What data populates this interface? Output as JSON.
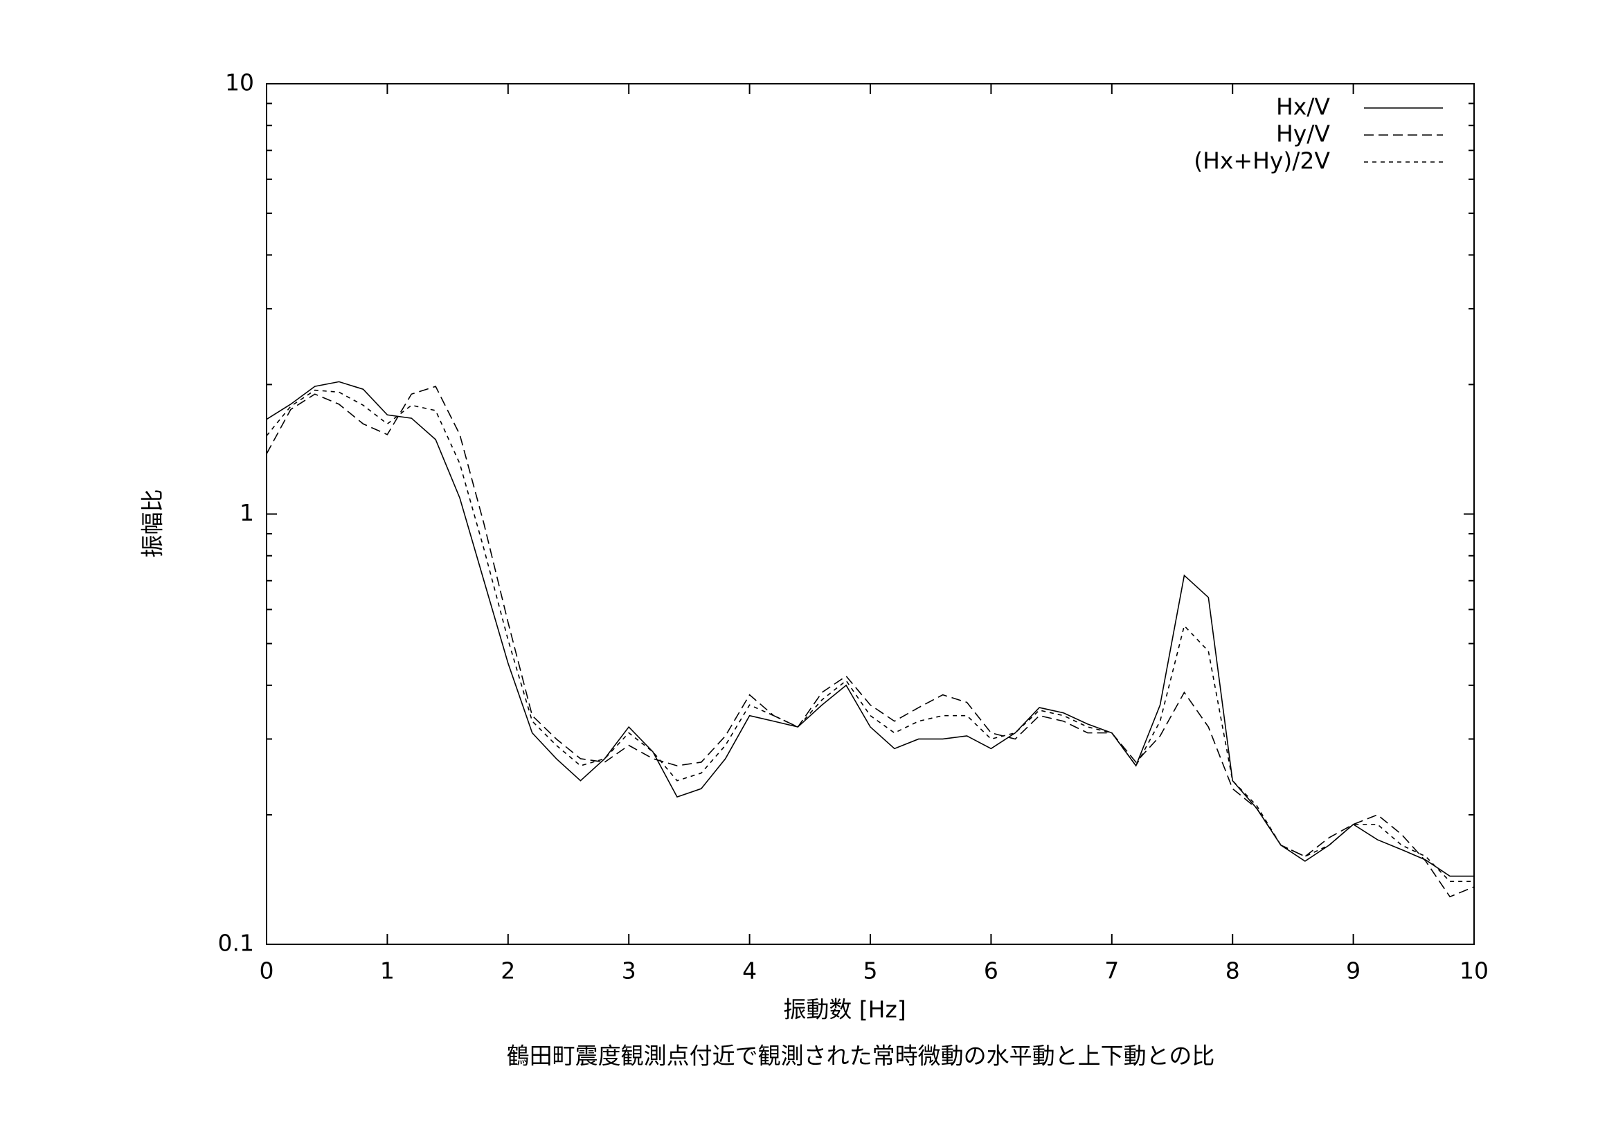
{
  "chart_data": {
    "type": "line",
    "title": "鶴田町震度観測点付近で観測された常時微動の水平動と上下動との比",
    "x_label": "振動数 [Hz]",
    "y_label": "振幅比",
    "x": [
      0,
      0.2,
      0.4,
      0.6,
      0.8,
      1,
      1.2,
      1.4,
      1.6,
      1.8,
      2,
      2.2,
      2.4,
      2.6,
      2.8,
      3,
      3.2,
      3.4,
      3.6,
      3.8,
      4,
      4.2,
      4.4,
      4.6,
      4.8,
      5,
      5.2,
      5.4,
      5.6,
      5.8,
      6,
      6.2,
      6.4,
      6.6,
      6.8,
      7,
      7.2,
      7.4,
      7.6,
      7.8,
      8,
      8.2,
      8.4,
      8.6,
      8.8,
      9,
      9.2,
      9.4,
      9.6,
      9.8,
      10
    ],
    "series": [
      {
        "name": "Hx/V",
        "color": "#000000",
        "dash": "solid",
        "values": [
          1.66,
          1.8,
          1.98,
          2.03,
          1.95,
          1.7,
          1.67,
          1.49,
          1.09,
          0.7,
          0.45,
          0.31,
          0.27,
          0.24,
          0.27,
          0.32,
          0.28,
          0.22,
          0.23,
          0.27,
          0.34,
          0.33,
          0.32,
          0.36,
          0.4,
          0.32,
          0.285,
          0.3,
          0.3,
          0.305,
          0.285,
          0.31,
          0.355,
          0.345,
          0.325,
          0.31,
          0.26,
          0.36,
          0.72,
          0.64,
          0.24,
          0.207,
          0.17,
          0.156,
          0.17,
          0.19,
          0.175,
          0.166,
          0.157,
          0.144,
          0.144
        ]
      },
      {
        "name": "Hy/V",
        "color": "#000000",
        "dash": "long",
        "values": [
          1.38,
          1.75,
          1.9,
          1.8,
          1.62,
          1.53,
          1.9,
          1.98,
          1.53,
          0.95,
          0.56,
          0.34,
          0.3,
          0.27,
          0.265,
          0.29,
          0.27,
          0.26,
          0.265,
          0.305,
          0.38,
          0.34,
          0.32,
          0.385,
          0.42,
          0.36,
          0.33,
          0.355,
          0.38,
          0.365,
          0.31,
          0.3,
          0.34,
          0.33,
          0.31,
          0.31,
          0.265,
          0.305,
          0.385,
          0.32,
          0.23,
          0.207,
          0.17,
          0.16,
          0.177,
          0.19,
          0.2,
          0.18,
          0.156,
          0.129,
          0.136
        ]
      },
      {
        "name": "(Hx+Hy)/2V",
        "color": "#000000",
        "dash": "short",
        "values": [
          1.52,
          1.78,
          1.94,
          1.92,
          1.79,
          1.62,
          1.79,
          1.74,
          1.31,
          0.83,
          0.51,
          0.33,
          0.29,
          0.26,
          0.27,
          0.31,
          0.28,
          0.24,
          0.25,
          0.29,
          0.36,
          0.34,
          0.32,
          0.37,
          0.41,
          0.34,
          0.31,
          0.33,
          0.34,
          0.34,
          0.3,
          0.31,
          0.35,
          0.34,
          0.32,
          0.31,
          0.26,
          0.33,
          0.55,
          0.48,
          0.24,
          0.21,
          0.17,
          0.16,
          0.17,
          0.19,
          0.19,
          0.17,
          0.16,
          0.14,
          0.14
        ]
      }
    ],
    "xlim": [
      0,
      10
    ],
    "xticks": [
      0,
      1,
      2,
      3,
      4,
      5,
      6,
      7,
      8,
      9,
      10
    ],
    "ylim": [
      0.1,
      10
    ],
    "yticks": [
      0.1,
      1,
      10
    ],
    "y_log": true,
    "legend": "top-right",
    "grid": false
  }
}
